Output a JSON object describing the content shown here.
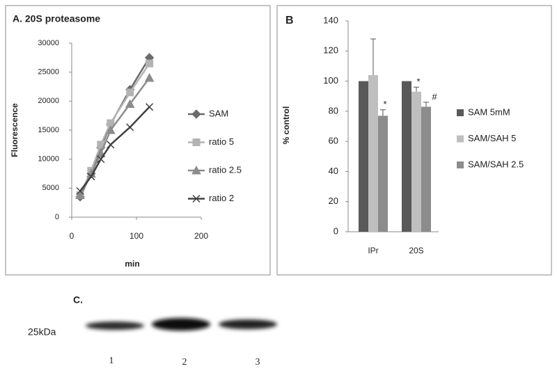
{
  "chart_data": [
    {
      "type": "line",
      "title": "A. 20S proteasome",
      "xlabel": "min",
      "ylabel": "Fluorescence",
      "xlim": [
        0,
        200
      ],
      "xticks": [
        0,
        100,
        200
      ],
      "ylim": [
        0,
        30000
      ],
      "yticks": [
        0,
        5000,
        10000,
        15000,
        20000,
        25000,
        30000
      ],
      "grid": false,
      "legend": "right",
      "series": [
        {
          "name": "SAM",
          "color": "#6b6b6b",
          "marker": "diamond",
          "x": [
            13,
            30,
            45,
            60,
            90,
            120
          ],
          "values": [
            3500,
            7500,
            12000,
            16000,
            22000,
            27500
          ]
        },
        {
          "name": "ratio 5",
          "color": "#b3b3b3",
          "marker": "square",
          "x": [
            13,
            30,
            45,
            60,
            90,
            120
          ],
          "values": [
            3800,
            8000,
            12500,
            16200,
            21500,
            26500
          ]
        },
        {
          "name": "ratio 2.5",
          "color": "#8c8c8c",
          "marker": "triangle",
          "x": [
            13,
            30,
            45,
            60,
            90,
            120
          ],
          "values": [
            3800,
            7500,
            11000,
            15000,
            19500,
            24000
          ]
        },
        {
          "name": "ratio 2",
          "color": "#404040",
          "marker": "x",
          "x": [
            13,
            30,
            45,
            60,
            90,
            120
          ],
          "values": [
            4500,
            7000,
            10000,
            12500,
            15500,
            19000
          ]
        }
      ]
    },
    {
      "type": "bar",
      "title": "B",
      "ylabel": "% control",
      "categories": [
        "IPr",
        "20S"
      ],
      "ylim": [
        0,
        140
      ],
      "yticks": [
        0,
        20,
        40,
        60,
        80,
        100,
        120,
        140
      ],
      "grid": false,
      "legend": "right",
      "series": [
        {
          "name": "SAM 5mM",
          "color": "#595959",
          "values": [
            100,
            100
          ],
          "errors": [
            null,
            null
          ]
        },
        {
          "name": "SAM/SAH 5",
          "color": "#bfbfbf",
          "values": [
            104,
            93
          ],
          "errors": [
            24,
            3
          ]
        },
        {
          "name": "SAM/SAH 2.5",
          "color": "#8c8c8c",
          "values": [
            77,
            83
          ],
          "errors": [
            4,
            3
          ]
        }
      ],
      "annotations": [
        "*",
        "*",
        "#"
      ]
    }
  ],
  "blot": {
    "label": "C.",
    "marker": "25kDa",
    "lanes": [
      "1",
      "2",
      "3"
    ]
  }
}
